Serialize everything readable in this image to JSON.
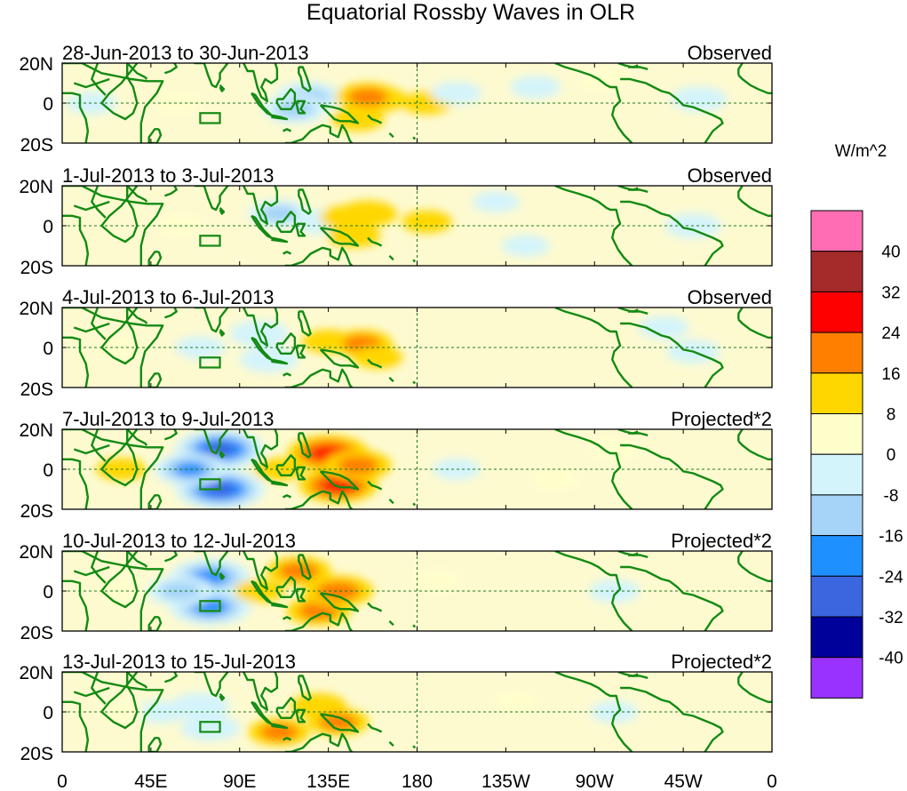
{
  "chart_data": {
    "type": "heatmap",
    "title": "Equatorial Rossby Waves in OLR",
    "variable": "OLR anomaly",
    "units_label": "W/m^2",
    "y_tick_labels": [
      "20N",
      "0",
      "20S"
    ],
    "ylim": [
      -20,
      20
    ],
    "xlim": [
      0,
      360
    ],
    "x_ticks": [
      {
        "lon": 0,
        "label": "0"
      },
      {
        "lon": 45,
        "label": "45E"
      },
      {
        "lon": 90,
        "label": "90E"
      },
      {
        "lon": 135,
        "label": "135E"
      },
      {
        "lon": 180,
        "label": "180"
      },
      {
        "lon": 225,
        "label": "135W"
      },
      {
        "lon": 270,
        "label": "90W"
      },
      {
        "lon": 315,
        "label": "45W"
      },
      {
        "lon": 360,
        "label": "0"
      }
    ],
    "colorbar": {
      "labels": [
        "40",
        "32",
        "24",
        "16",
        "8",
        "0",
        "-8",
        "-16",
        "-24",
        "-32",
        "-40"
      ],
      "colors": [
        "#ff6eb4",
        "#a52a2a",
        "#ff0000",
        "#ff7f00",
        "#ffd700",
        "#ffffcc",
        "#d4f4fb",
        "#a6d4f8",
        "#1e90ff",
        "#3a66e0",
        "#00009a",
        "#9932ff"
      ]
    },
    "reference_box": {
      "lon_min": 70,
      "lon_max": 80,
      "lat_min": -10,
      "lat_max": -5
    },
    "panels": [
      {
        "period": "28-Jun-2013 to 30-Jun-2013",
        "kind": "Observed",
        "anomalies": [
          {
            "lon": 125,
            "lat": 3,
            "value": -20
          },
          {
            "lon": 118,
            "lat": -3,
            "value": -18
          },
          {
            "lon": 160,
            "lat": 2,
            "value": 14
          },
          {
            "lon": 155,
            "lat": 3,
            "value": 18
          },
          {
            "lon": 150,
            "lat": -8,
            "value": 10
          },
          {
            "lon": 185,
            "lat": 0,
            "value": 8
          },
          {
            "lon": 275,
            "lat": 12,
            "value": 6
          },
          {
            "lon": 323,
            "lat": 2,
            "value": -12
          },
          {
            "lon": 58,
            "lat": 0,
            "value": 6
          },
          {
            "lon": 200,
            "lat": 5,
            "value": -8
          },
          {
            "lon": 240,
            "lat": 8,
            "value": -8
          },
          {
            "lon": 15,
            "lat": 0,
            "value": -8
          }
        ]
      },
      {
        "period": "1-Jul-2013 to 3-Jul-2013",
        "kind": "Observed",
        "anomalies": [
          {
            "lon": 110,
            "lat": 6,
            "value": -16
          },
          {
            "lon": 130,
            "lat": 2,
            "value": -10
          },
          {
            "lon": 145,
            "lat": 4,
            "value": 12
          },
          {
            "lon": 155,
            "lat": 6,
            "value": 14
          },
          {
            "lon": 148,
            "lat": -5,
            "value": 10
          },
          {
            "lon": 185,
            "lat": 2,
            "value": 8
          },
          {
            "lon": 320,
            "lat": 0,
            "value": -12
          },
          {
            "lon": 60,
            "lat": 0,
            "value": 6
          },
          {
            "lon": 220,
            "lat": 12,
            "value": -6
          },
          {
            "lon": 235,
            "lat": -10,
            "value": -6
          }
        ]
      },
      {
        "period": "4-Jul-2013 to 6-Jul-2013",
        "kind": "Observed",
        "anomalies": [
          {
            "lon": 100,
            "lat": 7,
            "value": -14
          },
          {
            "lon": 105,
            "lat": -6,
            "value": -14
          },
          {
            "lon": 70,
            "lat": 0,
            "value": -8
          },
          {
            "lon": 135,
            "lat": 3,
            "value": 10
          },
          {
            "lon": 152,
            "lat": 2,
            "value": 16
          },
          {
            "lon": 160,
            "lat": -5,
            "value": 8
          },
          {
            "lon": 30,
            "lat": 0,
            "value": 6
          },
          {
            "lon": 320,
            "lat": -2,
            "value": -10
          },
          {
            "lon": 305,
            "lat": 10,
            "value": -8
          }
        ]
      },
      {
        "period": "7-Jul-2013 to 9-Jul-2013",
        "kind": "Projected*2",
        "anomalies": [
          {
            "lon": 80,
            "lat": 10,
            "value": -36
          },
          {
            "lon": 80,
            "lat": -10,
            "value": -36
          },
          {
            "lon": 65,
            "lat": 0,
            "value": -24
          },
          {
            "lon": 135,
            "lat": 8,
            "value": 30
          },
          {
            "lon": 140,
            "lat": -8,
            "value": 28
          },
          {
            "lon": 150,
            "lat": 2,
            "value": 20
          },
          {
            "lon": 110,
            "lat": 0,
            "value": 8
          },
          {
            "lon": 30,
            "lat": 0,
            "value": 8
          },
          {
            "lon": 200,
            "lat": 0,
            "value": -6
          },
          {
            "lon": 280,
            "lat": 10,
            "value": 6
          },
          {
            "lon": 250,
            "lat": -5,
            "value": 6
          }
        ]
      },
      {
        "period": "10-Jul-2013 to 12-Jul-2013",
        "kind": "Projected*2",
        "anomalies": [
          {
            "lon": 75,
            "lat": 7,
            "value": -30
          },
          {
            "lon": 75,
            "lat": -8,
            "value": -30
          },
          {
            "lon": 60,
            "lat": 0,
            "value": -20
          },
          {
            "lon": 120,
            "lat": 10,
            "value": 18
          },
          {
            "lon": 130,
            "lat": -10,
            "value": 18
          },
          {
            "lon": 140,
            "lat": 0,
            "value": 22
          },
          {
            "lon": 100,
            "lat": 0,
            "value": 8
          },
          {
            "lon": 30,
            "lat": 0,
            "value": 6
          },
          {
            "lon": 280,
            "lat": 0,
            "value": -8
          },
          {
            "lon": 190,
            "lat": 5,
            "value": 6
          }
        ]
      },
      {
        "period": "13-Jul-2013 to 15-Jul-2013",
        "kind": "Projected*2",
        "anomalies": [
          {
            "lon": 70,
            "lat": 3,
            "value": -14
          },
          {
            "lon": 75,
            "lat": -8,
            "value": -14
          },
          {
            "lon": 50,
            "lat": 0,
            "value": -8
          },
          {
            "lon": 110,
            "lat": -10,
            "value": 16
          },
          {
            "lon": 130,
            "lat": 3,
            "value": 12
          },
          {
            "lon": 140,
            "lat": -5,
            "value": 16
          },
          {
            "lon": 30,
            "lat": 0,
            "value": 4
          },
          {
            "lon": 280,
            "lat": 0,
            "value": -6
          },
          {
            "lon": 230,
            "lat": 5,
            "value": 4
          }
        ]
      }
    ]
  }
}
